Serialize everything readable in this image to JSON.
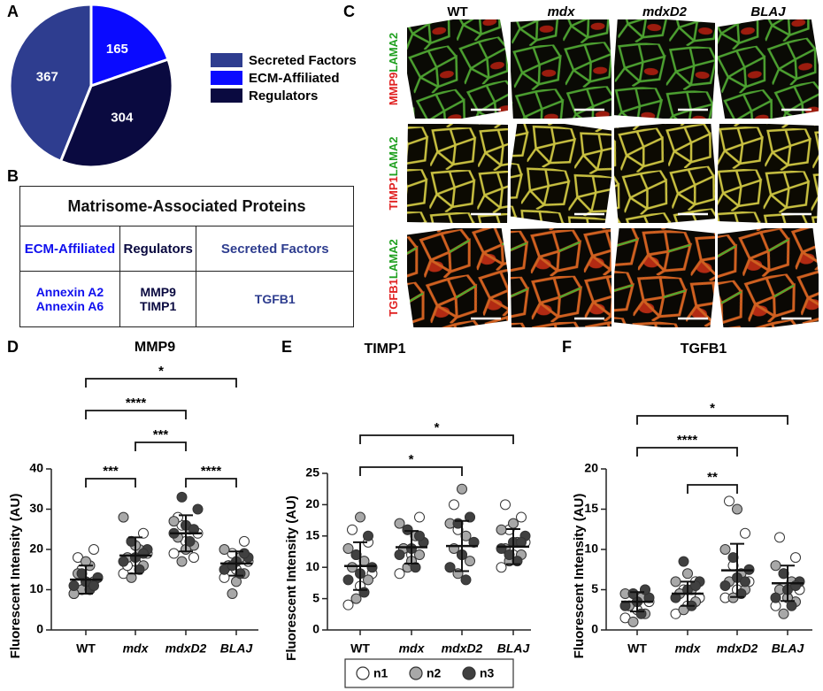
{
  "panel_labels": [
    "A",
    "B",
    "C",
    "D",
    "E",
    "F"
  ],
  "chart_data": [
    {
      "type": "pie",
      "categories": [
        "Secreted Factors",
        "ECM-Affiliated",
        "Regulators"
      ],
      "values": [
        367,
        165,
        304
      ],
      "colors": [
        "#2e3d8f",
        "#0a0aff",
        "#0a0a40"
      ]
    },
    {
      "type": "strip",
      "title": "MMP9",
      "ylabel": "Fluorescent Intensity (AU)",
      "categories": [
        "WT",
        "mdx",
        "mdxD2",
        "BLAJ"
      ],
      "ylim": [
        0,
        40
      ],
      "yticks": [
        0,
        10,
        20,
        30,
        40
      ],
      "mean": [
        12.5,
        18.5,
        24,
        16.5
      ],
      "sd": [
        3.5,
        4.5,
        4.5,
        3
      ],
      "series": [
        {
          "values": [
            [
              9,
              11,
              13,
              15,
              20,
              18
            ],
            [
              14,
              17,
              19,
              22,
              24,
              16
            ],
            [
              19,
              22,
              24,
              26,
              18,
              28
            ],
            [
              13,
              15,
              17,
              19,
              22,
              16
            ]
          ]
        },
        {
          "values": [
            [
              10,
              12,
              14,
              16,
              9,
              17
            ],
            [
              13,
              16,
              18,
              20,
              28,
              21
            ],
            [
              17,
              21,
              23,
              25,
              27,
              20
            ],
            [
              9,
              14,
              16,
              18,
              20,
              12
            ]
          ]
        },
        {
          "values": [
            [
              10,
              11,
              12,
              13,
              14,
              11
            ],
            [
              15,
              17,
              18,
              20,
              22,
              19
            ],
            [
              22,
              24,
              26,
              30,
              33,
              25
            ],
            [
              14,
              15,
              17,
              18,
              16,
              19
            ]
          ]
        }
      ],
      "brackets": [
        {
          "from": "WT",
          "to": "BLAJ",
          "label": "*"
        },
        {
          "from": "WT",
          "to": "mdxD2",
          "label": "****"
        },
        {
          "from": "mdx",
          "to": "mdxD2",
          "label": "***"
        },
        {
          "from": "WT",
          "to": "mdx",
          "label": "***"
        },
        {
          "from": "mdxD2",
          "to": "BLAJ",
          "label": "****"
        }
      ]
    },
    {
      "type": "strip",
      "title": "TIMP1",
      "ylabel": "Fluorescent Intensity (AU)",
      "categories": [
        "WT",
        "mdx",
        "mdxD2",
        "BLAJ"
      ],
      "ylim": [
        0,
        25
      ],
      "yticks": [
        0,
        5,
        10,
        15,
        20,
        25
      ],
      "mean": [
        10.2,
        13.2,
        13.4,
        13.3
      ],
      "sd": [
        3.8,
        2.6,
        4,
        2.8
      ],
      "series": [
        {
          "values": [
            [
              4,
              7,
              9,
              12,
              14,
              16
            ],
            [
              9,
              12,
              14,
              16,
              18,
              13
            ],
            [
              10,
              12,
              14,
              16,
              18,
              20
            ],
            [
              10,
              12,
              14,
              16,
              18,
              20
            ]
          ]
        },
        {
          "values": [
            [
              5,
              8,
              10,
              11,
              13,
              18
            ],
            [
              10,
              12,
              13,
              15,
              17,
              11
            ],
            [
              9,
              11,
              13,
              15,
              17,
              22.5
            ],
            [
              11,
              12,
              13,
              14,
              16,
              17
            ]
          ]
        },
        {
          "values": [
            [
              6,
              8,
              9,
              10,
              12,
              15
            ],
            [
              10,
              12,
              13,
              14,
              16,
              15
            ],
            [
              8,
              10,
              12,
              14,
              17,
              18
            ],
            [
              11,
              13,
              14,
              15,
              12,
              14
            ]
          ]
        }
      ],
      "brackets": [
        {
          "from": "WT",
          "to": "BLAJ",
          "label": "*"
        },
        {
          "from": "WT",
          "to": "mdxD2",
          "label": "*"
        }
      ]
    },
    {
      "type": "strip",
      "title": "TGFB1",
      "ylabel": "Fluorescent Intensity (AU)",
      "categories": [
        "WT",
        "mdx",
        "mdxD2",
        "BLAJ"
      ],
      "ylim": [
        0,
        20
      ],
      "yticks": [
        0,
        5,
        10,
        15,
        20
      ],
      "mean": [
        3.5,
        4.5,
        7.4,
        5.8
      ],
      "sd": [
        1.2,
        1.5,
        3.3,
        2.2
      ],
      "series": [
        {
          "values": [
            [
              1.5,
              2.5,
              3.5,
              4.5,
              5,
              3
            ],
            [
              2,
              3,
              4,
              5,
              6,
              4.5
            ],
            [
              4,
              5,
              6,
              8,
              12,
              16
            ],
            [
              3,
              4,
              5,
              7,
              9,
              11.5
            ]
          ]
        },
        {
          "values": [
            [
              1,
              2,
              3,
              4,
              4.5,
              3.5
            ],
            [
              2.5,
              3.5,
              4.5,
              5,
              6,
              7
            ],
            [
              4,
              5,
              6,
              7,
              10,
              15
            ],
            [
              2,
              3.5,
              5,
              6,
              8,
              4
            ]
          ]
        },
        {
          "values": [
            [
              2,
              3,
              3.5,
              4,
              4.5,
              5
            ],
            [
              3,
              4,
              5,
              6,
              8.5,
              5.5
            ],
            [
              4.5,
              5.5,
              6.5,
              7.5,
              9,
              6
            ],
            [
              3,
              4,
              5,
              6,
              7,
              5.5
            ]
          ]
        }
      ],
      "brackets": [
        {
          "from": "WT",
          "to": "BLAJ",
          "label": "*"
        },
        {
          "from": "WT",
          "to": "mdxD2",
          "label": "****"
        },
        {
          "from": "mdx",
          "to": "mdxD2",
          "label": "**"
        }
      ]
    }
  ],
  "replicates": [
    {
      "name": "n1",
      "color": "#ffffff"
    },
    {
      "name": "n2",
      "color": "#a8a8a8"
    },
    {
      "name": "n3",
      "color": "#404040"
    }
  ],
  "table": {
    "title": "Matrisome-Associated Proteins",
    "header": [
      "ECM-Affiliated",
      "Regulators",
      "Secreted Factors"
    ],
    "cells": [
      [
        "Annexin A2",
        "Annexin A6"
      ],
      [
        "MMP9",
        "TIMP1"
      ],
      [
        "TGFB1"
      ]
    ]
  },
  "micrographs": {
    "columns": [
      "WT",
      "mdx",
      "mdxD2",
      "BLAJ"
    ],
    "rows": [
      {
        "marker": "MMP9",
        "counterstain": "LAMA2"
      },
      {
        "marker": "TIMP1",
        "counterstain": "LAMA2"
      },
      {
        "marker": "TGFB1",
        "counterstain": "LAMA2"
      }
    ]
  }
}
